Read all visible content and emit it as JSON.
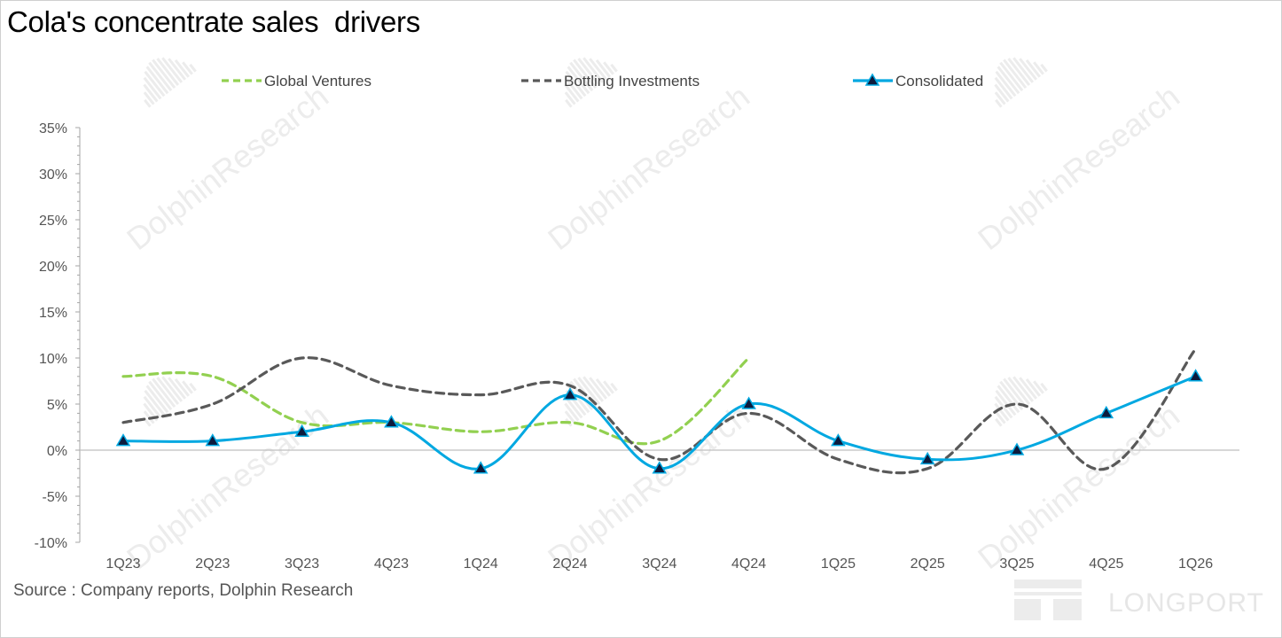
{
  "header": {
    "title": "Cola's concentrate sales  drivers"
  },
  "footer": {
    "source": "Source : Company reports, Dolphin Research"
  },
  "watermark": {
    "text": "DolphinResearch",
    "brand": "LONGPORT"
  },
  "colors": {
    "global_ventures": "#92d050",
    "bottling_investments": "#595959",
    "consolidated": "#00a8e1",
    "marker_fill": "#0d1b3d",
    "axis": "#a6a6a6",
    "watermark": "#ececec"
  },
  "chart_data": {
    "type": "line",
    "title": "Cola's concentrate sales  drivers",
    "xlabel": "",
    "ylabel": "",
    "categories": [
      "1Q23",
      "2Q23",
      "3Q23",
      "4Q23",
      "1Q24",
      "2Q24",
      "3Q24",
      "4Q24",
      "1Q25",
      "2Q25",
      "3Q25",
      "4Q25",
      "1Q26"
    ],
    "ylim": [
      -10,
      35
    ],
    "y_ticks": [
      -10,
      -5,
      0,
      5,
      10,
      15,
      20,
      25,
      30,
      35
    ],
    "y_tick_labels": [
      "-10%",
      "-5%",
      "0%",
      "5%",
      "10%",
      "15%",
      "20%",
      "25%",
      "30%",
      "35%"
    ],
    "grid": false,
    "legend_position": "top",
    "series": [
      {
        "name": "Global Ventures",
        "style": "dashed",
        "values": [
          8,
          8,
          3,
          3,
          2,
          3,
          1,
          10,
          null,
          null,
          null,
          null,
          null
        ]
      },
      {
        "name": "Bottling Investments",
        "style": "dashed",
        "values": [
          3,
          5,
          10,
          7,
          6,
          7,
          -1,
          4,
          -1,
          -2,
          5,
          -2,
          11
        ]
      },
      {
        "name": "Consolidated",
        "style": "solid-triangle-markers",
        "values": [
          1,
          1,
          2,
          3,
          -2,
          6,
          -2,
          5,
          1,
          -1,
          0,
          4,
          8
        ]
      }
    ]
  }
}
